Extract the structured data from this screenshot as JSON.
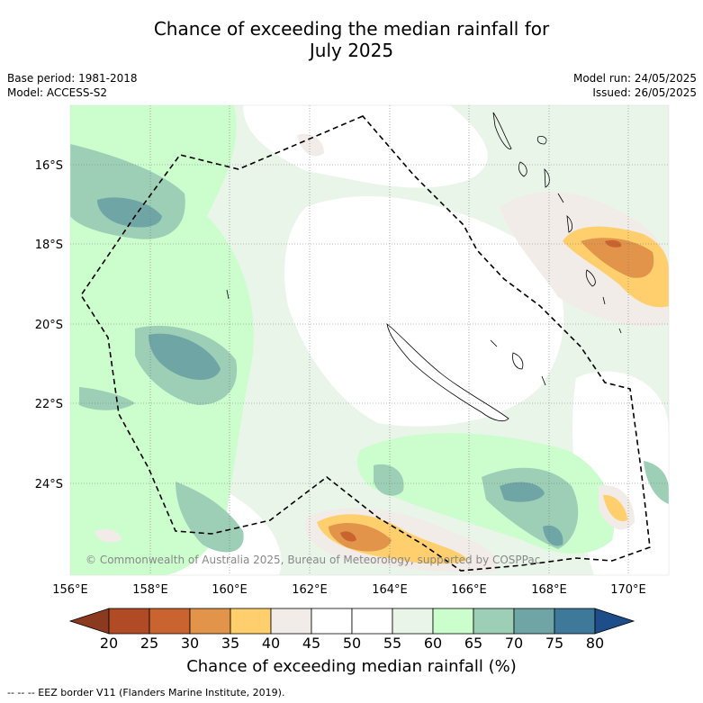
{
  "title_line1": "Chance of exceeding the median rainfall for",
  "title_line2": "July 2025",
  "base_period": "Base period: 1981-2018",
  "model": "Model: ACCESS-S2",
  "model_run": "Model run: 24/05/2025",
  "issued": "Issued: 26/05/2025",
  "copyright": "© Commonwealth of Australia 2025, Bureau of Meteorology, supported by COSPPac",
  "lat_labels": [
    "16°S",
    "18°S",
    "20°S",
    "22°S",
    "24°S"
  ],
  "lon_labels": [
    "156°E",
    "158°E",
    "160°E",
    "162°E",
    "164°E",
    "166°E",
    "168°E",
    "170°E"
  ],
  "colorbar": {
    "ticks": [
      "20",
      "25",
      "30",
      "35",
      "40",
      "45",
      "50",
      "55",
      "60",
      "65",
      "70",
      "75",
      "80"
    ],
    "colors": [
      "#b14b26",
      "#c9632f",
      "#e2954a",
      "#fecf6c",
      "#f1ece8",
      "#ffffff",
      "#ffffff",
      "#eaf5ea",
      "#ccfdcd",
      "#9ccfb6",
      "#70a5a6",
      "#3e7999"
    ],
    "low_color": "#8b3a1f",
    "high_color": "#1d4e89",
    "title": "Chance of exceeding median rainfall (%)"
  },
  "legend_note": "-- -- -- EEZ border V11 (Flanders Marine Institute, 2019)."
}
